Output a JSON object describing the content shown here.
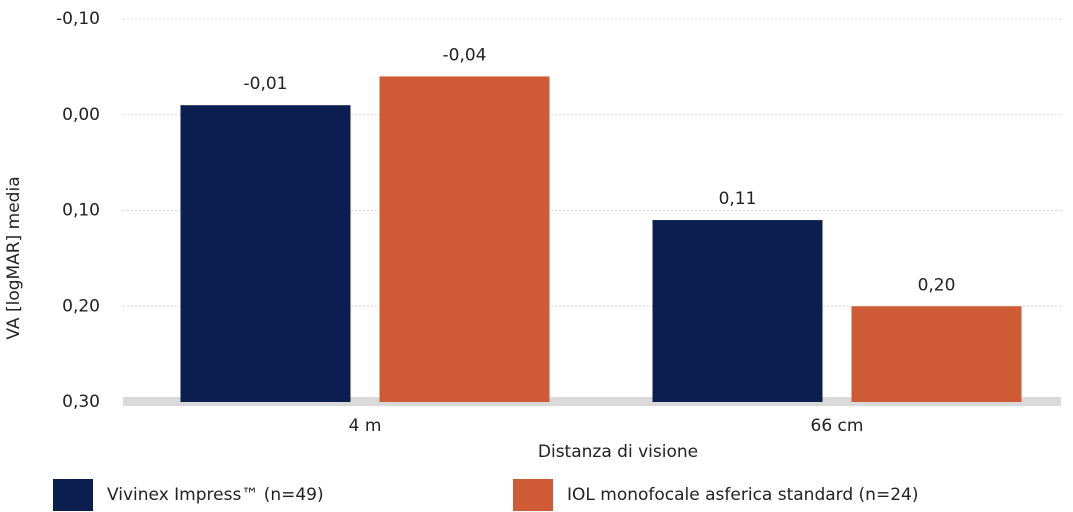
{
  "chart_data": {
    "type": "bar",
    "title": "",
    "xlabel": "Distanza di visione",
    "ylabel": "VA [logMAR] media",
    "categories": [
      "4 m",
      "66 cm"
    ],
    "series": [
      {
        "name": "Vivinex Impress™ (n=49)",
        "color": "#0a1e4f",
        "values": [
          -0.01,
          0.11
        ],
        "value_labels": [
          "-0,01",
          "0,11"
        ]
      },
      {
        "name": "IOL monofocale asferica standard (n=24)",
        "color": "#ce5b36",
        "values": [
          -0.04,
          0.2
        ],
        "value_labels": [
          "-0,04",
          "0,20"
        ]
      }
    ],
    "ylim": [
      0.3,
      -0.1
    ],
    "y_inverted": true,
    "yticks": [
      -0.1,
      0.0,
      0.1,
      0.2,
      0.3
    ],
    "ytick_labels": [
      "-0,10",
      "0,00",
      "0,10",
      "0,20",
      "0,30"
    ],
    "grid": true,
    "legend_position": "bottom"
  }
}
